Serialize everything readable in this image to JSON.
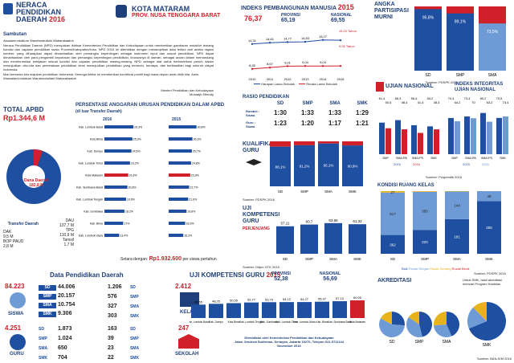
{
  "header": {
    "title_line1": "NERACA",
    "title_line2": "PENDIDIKAN",
    "title_line3": "DAERAH",
    "year": "2016",
    "region_name": "KOTA MATARAM",
    "province_name": "PROV. NUSA TENGGARA BARAT"
  },
  "sambutan": {
    "heading": "Sambutan",
    "paragraph1": "Assalamu'alaikum Warahmatullahi Wabarakaatuh",
    "paragraph2": "Neraca Pendidikan Daerah (NPD) merupakan ikhtisar Kementerian Pendidikan dan Kebudayaan untuk memberikan gambaran mutakhir tentang kondisi dan capaian pendidikan suatu Provinsi/Kabupaten/Kota. NPD 2016 ini diterbitkan dengan menampilkan data terkini dari aneka ragam sumber, yang diharapkan dapat dimanfaatkan oleh pemangku kepentingan sebagai instrumen input dan output pendidikan. NPD dapat dimanfaatkan oleh para pengambil keputusan dan pemangku kepentingan pendidikan, khususnya di daerah, sebagai acuan dalam memandang dan memformulasi kebijakan sesuai kondisi dan capaian pendidikan masing-masing. NPD sebagai alat untuk berkontribusi penuh dalam mewujudkan cita-cita dan pemerataan pendidikan demi mewujudkan pendidikan yang bermutu, berdaya, dan berkeadilan bagi seluruh rakyat Indonesia.",
    "paragraph3": "Mari bersama kita majukan pendidikan Indonesia. Semoga ikhtiar ini memberikan kontribusi positif bagi masa depan anak didik kita. Amin.",
    "paragraph4": "Wassalamu'alaikum Warahmatullahi Wabarakaatuh",
    "signature_title": "Menteri Pendidikan dan Kebudayaan",
    "signature_name": "Muhadjir Effendy"
  },
  "ipm": {
    "title": "INDEKS PEMBANGUNAN MANUSIA",
    "year": "2015",
    "kota_value": "76,37",
    "provinsi_label": "PROVINSI",
    "provinsi_value": "65,19",
    "nasional_label": "NASIONAL",
    "nasional_value": "69,55",
    "rls_label": "15,20 Tahun",
    "hls_label": "9,05 Tahun",
    "legend_hls": "Harapan Lama Sekolah",
    "legend_rls": "Rerata Lama Sekolah",
    "source": "Sumber: BPS"
  },
  "apm": {
    "title_line1": "ANGKA",
    "title_line2": "PARTISIPASI",
    "title_line3": "MURNI",
    "source": "Sumber: PDSPK 2016"
  },
  "apbd": {
    "title": "TOTAL APBD",
    "total": "Rp1.344,6 M",
    "dana_daerah_label": "Dana Daerah",
    "dana_daerah_value": "182,8 M",
    "transfer_label": "Transfer Daerah",
    "transfer_value": "1.161,9 M",
    "items": [
      {
        "label": "DAK",
        "value": "9,5 M"
      },
      {
        "label": "BOP PAUD",
        "value": "2,8 M"
      },
      {
        "label": "DAU",
        "value": "137,7 M"
      },
      {
        "label": "TPG",
        "value": "110,9 M"
      },
      {
        "label": "Tamsil",
        "value": "1,7 M"
      }
    ]
  },
  "persentase": {
    "title": "PERSENTASE ANGGARAN URUSAN PENDIDIKAN DALAM APBD",
    "subtitle": "(di luar Transfer Daerah)",
    "year_left": "2016",
    "year_right": "2015",
    "setara_label": "Setara dengan:",
    "setara_value": "Rp1.932.600",
    "setara_suffix": "per siswa pertahun"
  },
  "rasio": {
    "title": "RASIO PENDIDIKAN",
    "row1": "Rombel : Siswa",
    "row2": "Guru : Siswa",
    "columns": [
      "SD",
      "SMP",
      "SMA",
      "SMK"
    ],
    "rombel": [
      "1:30",
      "1:33",
      "1:33",
      "1:29"
    ],
    "guru": [
      "1:23",
      "1:20",
      "1:17",
      "1:21"
    ]
  },
  "kualifikasi": {
    "title_line1": "KUALIFIKASI",
    "title_line2": "GURU",
    "source": "Sumber: PDSPK 2016"
  },
  "ukg_small": {
    "title_line1": "UJI",
    "title_line2": "KOMPETENSI",
    "title_line3": "GURU",
    "subtitle": "PERJENJANG",
    "source": "Sumber: Ditjen GTK 2015"
  },
  "ujian_nasional": {
    "title": "UJIAN NASIONAL",
    "source": "Sumber: Puspendik 2016"
  },
  "indeks_integritas": {
    "title_line1": "INDEKS INTEGRITAS",
    "title_line2": "UJIAN NASIONAL"
  },
  "kondisi_ruang": {
    "title": "KONDISI RUANG KELAS",
    "legend": [
      "Baik",
      "Rusak Ringan",
      "Rusak Sedang",
      "Rusak Berat"
    ],
    "source": "Sumber: PDSPK 2016"
  },
  "data_pendidikan": {
    "title": "Data Pendidikan Daerah",
    "siswa_label": "SISWA",
    "siswa_total": "84.223",
    "siswa_rows": [
      {
        "level": "SD",
        "value": "44.006"
      },
      {
        "level": "SMP",
        "value": "20.157"
      },
      {
        "level": "SMA",
        "value": "10.754"
      },
      {
        "level": "SMK",
        "value": "9.306"
      }
    ],
    "kelas_label": "KELAS",
    "kelas_total": "2.412",
    "kelas_rows": [
      {
        "value": "1.206",
        "level": "SD"
      },
      {
        "value": "576",
        "level": "SMP"
      },
      {
        "value": "327",
        "level": "SMA"
      },
      {
        "value": "303",
        "level": "SMK"
      }
    ],
    "guru_label": "GURU",
    "guru_total": "4.251",
    "guru_rows": [
      {
        "level": "SD",
        "value": "1.873"
      },
      {
        "level": "SMP",
        "value": "1.024"
      },
      {
        "level": "SMA",
        "value": "650"
      },
      {
        "level": "SMK",
        "value": "704"
      }
    ],
    "sekolah_label": "SEKOLAH",
    "sekolah_total": "247",
    "sekolah_rows": [
      {
        "value": "163",
        "level": "SD"
      },
      {
        "value": "39",
        "level": "SMP"
      },
      {
        "value": "23",
        "level": "SMA"
      },
      {
        "value": "22",
        "level": "SMK"
      }
    ]
  },
  "ukg_big": {
    "title": "UJI KOMPETENSI GURU",
    "year": "2015",
    "provinsi_label": "PROVINSI",
    "provinsi_value": "52,38",
    "nasional_label": "NASIONAL",
    "nasional_value": "56,69",
    "footer1": "Diterbitkan oleh Kementerian Pendidikan dan Kebudayaan",
    "footer2": "Jalan Jenderal Sudirman, Senayan, Jakarta 10270, Telepon 021-5711144",
    "footer3": "November 2016"
  },
  "akreditasi": {
    "title": "AKREDITASI",
    "note": "Untuk SMK, hasil akreditasi",
    "note2": "mencari Program Keahlian",
    "source": "Sumber: BAN-S/M 2016"
  },
  "chart_data": [
    {
      "type": "line",
      "name": "ipm",
      "categories": [
        "2010",
        "2011",
        "2012",
        "2013",
        "2014",
        "2015"
      ],
      "series": [
        {
          "name": "Harapan Lama Sekolah",
          "values": [
            14.31,
            14.61,
            14.77,
            14.83,
            15.27,
            15.2
          ]
        },
        {
          "name": "Rerata Lama Sekolah",
          "values": [
            8.35,
            8.67,
            9.01,
            9.04,
            9.04,
            9.05
          ]
        }
      ]
    },
    {
      "type": "bar",
      "name": "apm",
      "categories": [
        "SD",
        "SMP",
        "SMA"
      ],
      "series": [
        {
          "name": "APM",
          "values": [
            95.8,
            89.1,
            73.5
          ]
        }
      ],
      "ylim": [
        0,
        100
      ]
    },
    {
      "type": "bar",
      "name": "persentase-2016",
      "categories": [
        "Kab. Lombok Barat",
        "Kota Bima",
        "Kab. Dompu",
        "Kab. Lombok Timur",
        "Kota Mataram",
        "Kab. Sumbawa Barat",
        "Kab. Lombok Tengah",
        "Kab. Sumbawa",
        "Kab. Bima",
        "Kab. Lombok Utara"
      ],
      "values": [
        26.3,
        25.3,
        24.5,
        23.2,
        21.6,
        20.8,
        19.6,
        18.2,
        17.0,
        13.4
      ]
    },
    {
      "type": "bar",
      "name": "persentase-2015",
      "categories": [
        "Kab. Lombok Barat",
        "Kota Bima",
        "Kab. Dompu",
        "Kab. Lombok Timur",
        "Kota Mataram",
        "Kab. Sumbawa Barat",
        "Kab. Lombok Tengah",
        "Kab. Sumbawa",
        "Kab. Bima",
        "Kab. Lombok Utara"
      ],
      "values": [
        30.8,
        26.3,
        25.7,
        24.8,
        23.9,
        22.7,
        21.6,
        19.8,
        18.3,
        16.2
      ]
    },
    {
      "type": "bar",
      "name": "ujian-nasional",
      "categories": [
        "SMP",
        "SMA IPA",
        "SMA IPS",
        "SMK"
      ],
      "series": [
        {
          "name": "2015",
          "values": [
            61.4,
            66.3,
            56.4,
            54.2
          ]
        },
        {
          "name": "2016",
          "values": [
            50.5,
            48.4,
            41.4,
            48.3
          ]
        }
      ],
      "ylim": [
        0,
        100
      ]
    },
    {
      "type": "bar",
      "name": "indeks-integritas",
      "categories": [
        "SMP",
        "SMA IPA",
        "SMA IPS",
        "SMK"
      ],
      "series": [
        {
          "name": "2015",
          "values": [
            70.4,
            73.4,
            80.2,
            70.5
          ]
        },
        {
          "name": "2016",
          "values": [
            64.2,
            70.0,
            63.2,
            73.4
          ]
        }
      ],
      "ylim": [
        0,
        100
      ]
    },
    {
      "type": "bar",
      "name": "kualifikasi",
      "categories": [
        "SD",
        "SMP",
        "SMA",
        "SMK"
      ],
      "series": [
        {
          "name": ">= S1",
          "values": [
            88.1,
            91.2,
            95.1,
            90.9
          ]
        },
        {
          "name": "< S1",
          "values": [
            11.9,
            8.8,
            4.9,
            9.1
          ]
        }
      ],
      "ylim": [
        0,
        100
      ]
    },
    {
      "type": "bar",
      "name": "ukg-perjenjang",
      "categories": [
        "SD",
        "SMP",
        "SMA",
        "SMK"
      ],
      "values": [
        57.11,
        60.7,
        63.66,
        61.32
      ]
    },
    {
      "type": "bar",
      "name": "kondisi-ruang",
      "categories": [
        "SD",
        "SMP",
        "SMA",
        "SMK"
      ],
      "series": [
        {
          "name": "Baik",
          "values": [
            362,
            220,
            181,
            255
          ]
        },
        {
          "name": "Rusak Ringan",
          "values": [
            817,
            350,
            144,
            48
          ]
        },
        {
          "name": "Rusak Sedang",
          "values": [
            27,
            6,
            2,
            0
          ]
        }
      ]
    },
    {
      "type": "bar",
      "name": "ukg-kabupaten",
      "categories": [
        "Kab. Lombok Barat",
        "Kab. Dompu",
        "Kota Bima",
        "Kab. Lombok Tengah",
        "Kab. Sumbawa",
        "Kab. Lombok Timur",
        "Kab. Lombok Utara",
        "Kab. Bima",
        "Kab. Sumbawa Barat",
        "Kota Mataram"
      ],
      "values": [
        45.55,
        48.25,
        50.55,
        52.77,
        53.79,
        54.12,
        54.27,
        55.37,
        57.13,
        60.0
      ]
    },
    {
      "type": "pie",
      "name": "akreditasi",
      "categories": [
        "SD",
        "SMP",
        "SMA",
        "SMK"
      ],
      "series": [
        {
          "name": "A",
          "values": [
            26.2,
            46.2,
            43.5,
            68.8
          ]
        },
        {
          "name": "B",
          "values": [
            56.7,
            38.5,
            30.4,
            18.8
          ]
        },
        {
          "name": "C",
          "values": [
            17.1,
            15.3,
            26.1,
            12.4
          ]
        }
      ]
    }
  ],
  "colors": {
    "primary": "#1f4fa0",
    "accent_red": "#d0202a",
    "light_blue": "#6e9bd6",
    "gold": "#e8b21a"
  }
}
